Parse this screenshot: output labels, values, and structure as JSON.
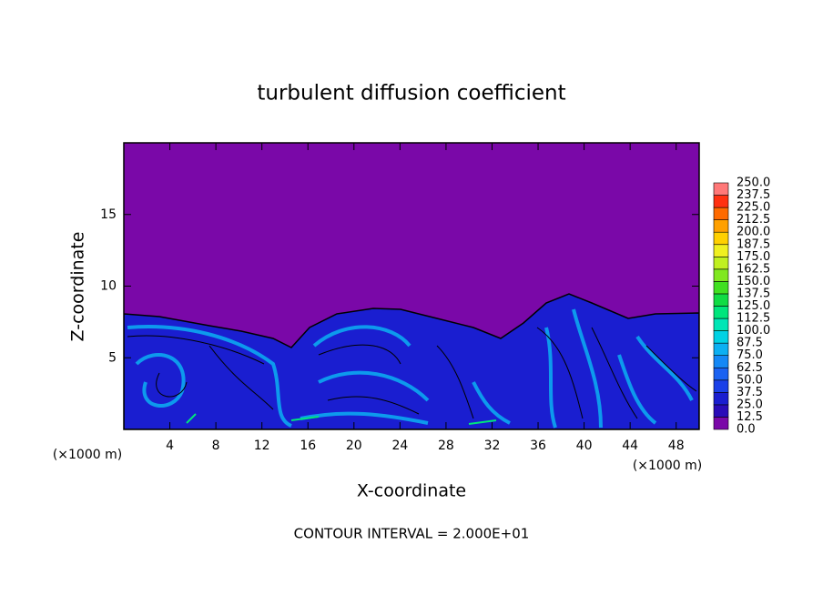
{
  "chart_data": {
    "type": "contour",
    "title": "turbulent diffusion coefficient",
    "xlabel": "X-coordinate",
    "ylabel": "Z-coordinate",
    "x_unit": "(×1000 m)",
    "annotation": "CONTOUR INTERVAL = 2.000E+01",
    "xlim": [
      0,
      50
    ],
    "ylim": [
      0,
      20
    ],
    "xticks": [
      4,
      8,
      12,
      16,
      20,
      24,
      28,
      32,
      36,
      40,
      44,
      48
    ],
    "yticks": [
      5,
      10,
      15
    ],
    "colorbar": {
      "levels": [
        {
          "value": 0,
          "label": "0.0"
        },
        {
          "value": 12.5,
          "label": "12.5"
        },
        {
          "value": 25,
          "label": "25.0"
        },
        {
          "value": 37.5,
          "label": "37.5"
        },
        {
          "value": 50,
          "label": "50.0"
        },
        {
          "value": 62.5,
          "label": "62.5"
        },
        {
          "value": 75,
          "label": "75.0"
        },
        {
          "value": 87.5,
          "label": "87.5"
        },
        {
          "value": 100,
          "label": "100.0"
        },
        {
          "value": 112.5,
          "label": "112.5"
        },
        {
          "value": 125,
          "label": "125.0"
        },
        {
          "value": 137.5,
          "label": "137.5"
        },
        {
          "value": 150,
          "label": "150.0"
        },
        {
          "value": 162.5,
          "label": "162.5"
        },
        {
          "value": 175,
          "label": "175.0"
        },
        {
          "value": 187.5,
          "label": "187.5"
        },
        {
          "value": 200,
          "label": "200.0"
        },
        {
          "value": 212.5,
          "label": "212.5"
        },
        {
          "value": 225,
          "label": "225.0"
        },
        {
          "value": 237.5,
          "label": "237.5"
        },
        {
          "value": 250,
          "label": "250.0"
        }
      ],
      "colors": [
        "#7a08a8",
        "#2a0cb8",
        "#1a1ed0",
        "#1a40e8",
        "#1a62f2",
        "#1488f6",
        "#0cb0f2",
        "#00d2e4",
        "#00e6b6",
        "#00e67c",
        "#10dc44",
        "#40e020",
        "#80e820",
        "#c0f020",
        "#f0f020",
        "#ffd000",
        "#ffa000",
        "#ff6a00",
        "#ff3010",
        "#ff7878"
      ]
    }
  }
}
